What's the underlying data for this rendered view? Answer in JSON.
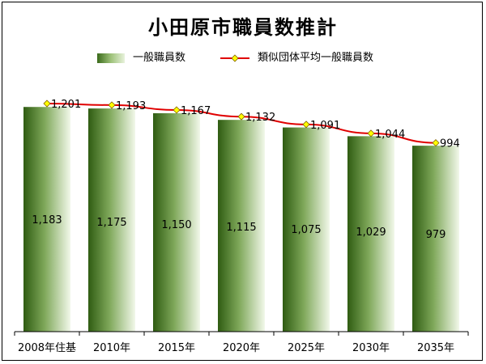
{
  "chart_data": {
    "type": "bar",
    "title": "小田原市職員数推計",
    "categories": [
      "2008年住基",
      "2010年",
      "2015年",
      "2020年",
      "2025年",
      "2030年",
      "2035年"
    ],
    "series": [
      {
        "name": "一般職員数",
        "kind": "bar",
        "values": [
          1183,
          1175,
          1150,
          1115,
          1075,
          1029,
          979
        ],
        "labels": [
          "1,183",
          "1,175",
          "1,150",
          "1,115",
          "1,075",
          "1,029",
          "979"
        ],
        "color": "#4a7a22"
      },
      {
        "name": "類似団体平均一般職員数",
        "kind": "line",
        "values": [
          1201,
          1193,
          1167,
          1132,
          1091,
          1044,
          994
        ],
        "labels": [
          "1,201",
          "1,193",
          "1,167",
          "1,132",
          "1,091",
          "1,044",
          "994"
        ],
        "color": "#e00000",
        "marker_color": "#ffff00"
      }
    ],
    "ylim": [
      0,
      1300
    ],
    "grid": false,
    "legend_position": "top",
    "xlabel": "",
    "ylabel": ""
  }
}
